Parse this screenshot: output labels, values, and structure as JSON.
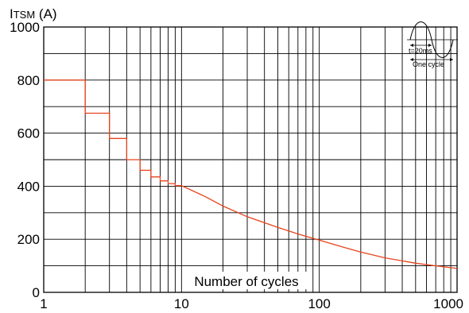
{
  "chart_data": {
    "type": "line",
    "ylabel": "ITSM (A)",
    "ylabel_main": "I",
    "ylabel_sub": "TSM",
    "ylabel_unit": " (A)",
    "xlabel": "Number of cycles",
    "xscale": "log",
    "xlim": [
      1,
      1000
    ],
    "ylim": [
      0,
      1000
    ],
    "x_ticks": [
      1,
      10,
      100,
      1000
    ],
    "x_tick_labels": [
      "1",
      "10",
      "100",
      "1000"
    ],
    "y_ticks": [
      0,
      200,
      400,
      600,
      800,
      1000
    ],
    "y_tick_labels": [
      "0",
      "200",
      "400",
      "600",
      "800",
      "1000"
    ],
    "grid": true,
    "line_color": "#e8431c",
    "series": [
      {
        "step_points": [
          [
            1,
            800
          ],
          [
            2,
            800
          ],
          [
            2,
            675
          ],
          [
            3,
            675
          ],
          [
            3,
            580
          ],
          [
            4,
            580
          ],
          [
            4,
            500
          ],
          [
            5,
            500
          ],
          [
            5,
            460
          ],
          [
            6,
            460
          ],
          [
            6,
            435
          ],
          [
            7,
            435
          ],
          [
            7,
            420
          ],
          [
            8,
            420
          ],
          [
            8,
            410
          ],
          [
            9,
            410
          ],
          [
            9,
            402
          ],
          [
            10,
            402
          ]
        ],
        "curve_points": [
          [
            10,
            402
          ],
          [
            15,
            360
          ],
          [
            20,
            325
          ],
          [
            30,
            285
          ],
          [
            50,
            245
          ],
          [
            70,
            220
          ],
          [
            100,
            197
          ],
          [
            150,
            170
          ],
          [
            200,
            152
          ],
          [
            300,
            130
          ],
          [
            500,
            110
          ],
          [
            700,
            100
          ],
          [
            1000,
            90
          ]
        ]
      }
    ],
    "inset": {
      "label_period": "t=20ms",
      "label_cycle": "One  cycle"
    }
  }
}
